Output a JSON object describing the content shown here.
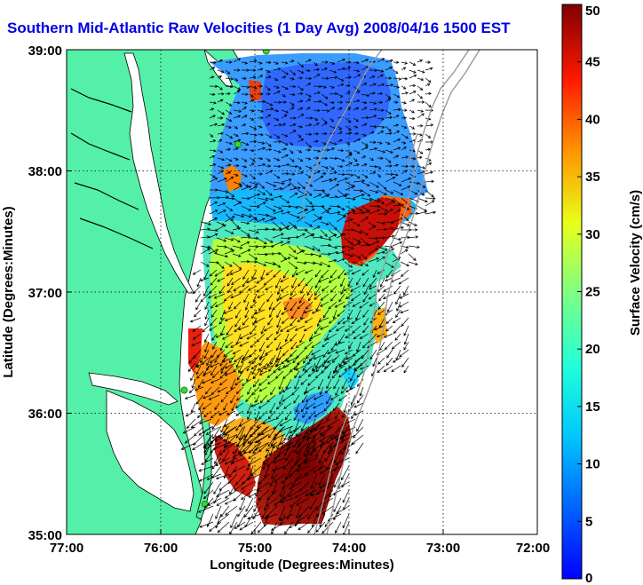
{
  "title": "Southern Mid-Atlantic Raw Velocities (1 Day Avg) 2008/04/16 1500 EST",
  "x_axis": {
    "label": "Longitude (Degrees:Minutes)",
    "ticks": [
      "77:00",
      "76:00",
      "75:00",
      "74:00",
      "73:00",
      "72:00"
    ]
  },
  "y_axis": {
    "label": "Latitude (Degrees:Minutes)",
    "ticks": [
      "39:00",
      "38:00",
      "37:00",
      "36:00",
      "35:00"
    ]
  },
  "colorbar": {
    "label": "Surface Velocity (cm/s)",
    "ticks": [
      "50",
      "45",
      "40",
      "35",
      "30",
      "25",
      "20",
      "15",
      "10",
      "5",
      "0"
    ],
    "range": [
      0,
      50
    ],
    "colormap": "jet"
  },
  "colors": {
    "title": "#0000e6",
    "land": "#55f0a8",
    "coastline": "#000000",
    "bathymetry": "#999999",
    "station_marker": "#33dd33"
  },
  "map_extent": {
    "lon": [
      -77,
      -72
    ],
    "lat": [
      35,
      39
    ]
  },
  "stations": [
    {
      "lon": -74.88,
      "lat": 38.99
    },
    {
      "lon": -75.18,
      "lat": 38.22
    },
    {
      "lon": -75.75,
      "lat": 36.19
    },
    {
      "lon": -75.53,
      "lat": 35.25
    }
  ],
  "grid": "dotted"
}
